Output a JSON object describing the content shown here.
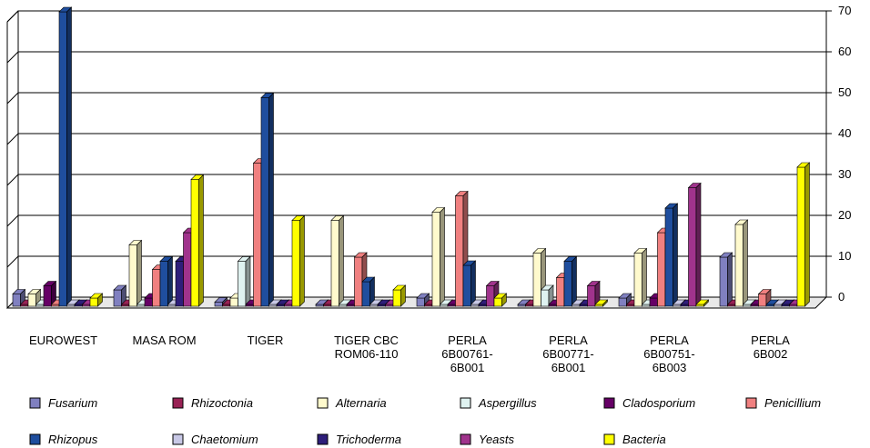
{
  "chart_data": {
    "type": "bar",
    "title": "",
    "xlabel": "",
    "ylabel": "",
    "ylim": [
      0,
      70
    ],
    "y_ticks": [
      "0",
      "10",
      "20",
      "30",
      "40",
      "50",
      "60",
      "70"
    ],
    "y_axis_side": "right",
    "grid": true,
    "legend_position": "bottom",
    "categories": [
      [
        "EUROWEST"
      ],
      [
        "MASA ROM"
      ],
      [
        "TIGER"
      ],
      [
        "TIGER CBC",
        "ROM06-110"
      ],
      [
        "PERLA",
        "6B00761-",
        "6B001"
      ],
      [
        "PERLA",
        "6B00771-",
        "6B001"
      ],
      [
        "PERLA",
        "6B00751-",
        "6B003"
      ],
      [
        "PERLA",
        "6B002"
      ]
    ],
    "series": [
      {
        "name": "Fusarium",
        "color": "#8080c0",
        "values": [
          3,
          4,
          1,
          0,
          2,
          0,
          2,
          12
        ]
      },
      {
        "name": "Rhizoctonia",
        "color": "#992255",
        "values": [
          0,
          0,
          0,
          0,
          0,
          0,
          0,
          0
        ]
      },
      {
        "name": "Alternaria",
        "color": "#fffacd",
        "values": [
          3,
          15,
          2,
          21,
          23,
          13,
          13,
          20
        ]
      },
      {
        "name": "Aspergillus",
        "color": "#dff2f0",
        "values": [
          0,
          0,
          11,
          0,
          0,
          4,
          0,
          0
        ]
      },
      {
        "name": "Cladosporium",
        "color": "#660066",
        "values": [
          5,
          2,
          0,
          0,
          0,
          0,
          2,
          0
        ]
      },
      {
        "name": "Penicillium",
        "color": "#f08080",
        "values": [
          0,
          9,
          35,
          12,
          27,
          7,
          18,
          3
        ]
      },
      {
        "name": "Rhizopus",
        "color": "#1f4e9e",
        "values": [
          72,
          11,
          51,
          6,
          10,
          11,
          24,
          0
        ]
      },
      {
        "name": "Chaetomium",
        "color": "#c8c8e6",
        "values": [
          0,
          0,
          0,
          0,
          0,
          0,
          0,
          0
        ]
      },
      {
        "name": "Trichoderma",
        "color": "#2e1e7a",
        "values": [
          0,
          11,
          0,
          0,
          0,
          0,
          0,
          0
        ]
      },
      {
        "name": "Yeasts",
        "color": "#a0338c",
        "values": [
          0,
          18,
          0,
          0,
          5,
          5,
          29,
          0
        ]
      },
      {
        "name": "Bacteria",
        "color": "#ffff00",
        "values": [
          2,
          31,
          21,
          4,
          2,
          0,
          0,
          34
        ]
      }
    ]
  }
}
